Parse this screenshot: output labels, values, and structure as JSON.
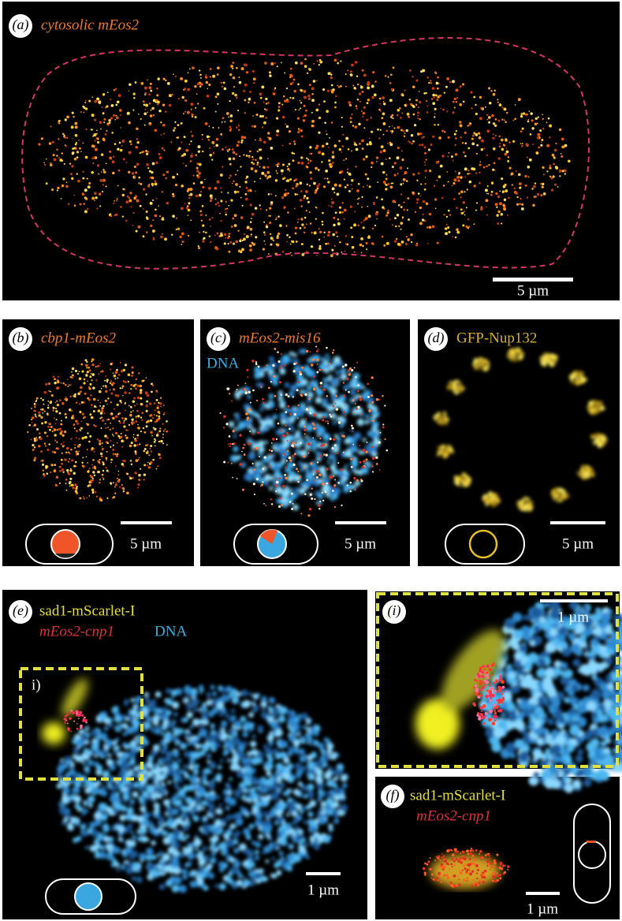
{
  "panels": {
    "a": {
      "label": "(a)",
      "title": "cytosolic mEos2",
      "scale": "5 µm"
    },
    "b": {
      "label": "(b)",
      "title": "cbp1-mEos2",
      "scale": "5 µm"
    },
    "c": {
      "label": "(c)",
      "title": "mEos2-mis16",
      "stain": "DNA",
      "scale": "5 µm"
    },
    "d": {
      "label": "(d)",
      "title": "GFP-Nup132",
      "scale": "5 µm"
    },
    "e": {
      "label": "(e)",
      "title": "sad1-mScarlet-I",
      "subtitle": "mEos2-cnp1",
      "stain": "DNA",
      "inset": "i)",
      "scale": "1 µm"
    },
    "i": {
      "label": "(i)",
      "scale": "1 µm"
    },
    "f": {
      "label": "(f)",
      "title": "sad1-mScarlet-I",
      "subtitle": "mEos2-cnp1",
      "scale": "1 µm"
    }
  }
}
